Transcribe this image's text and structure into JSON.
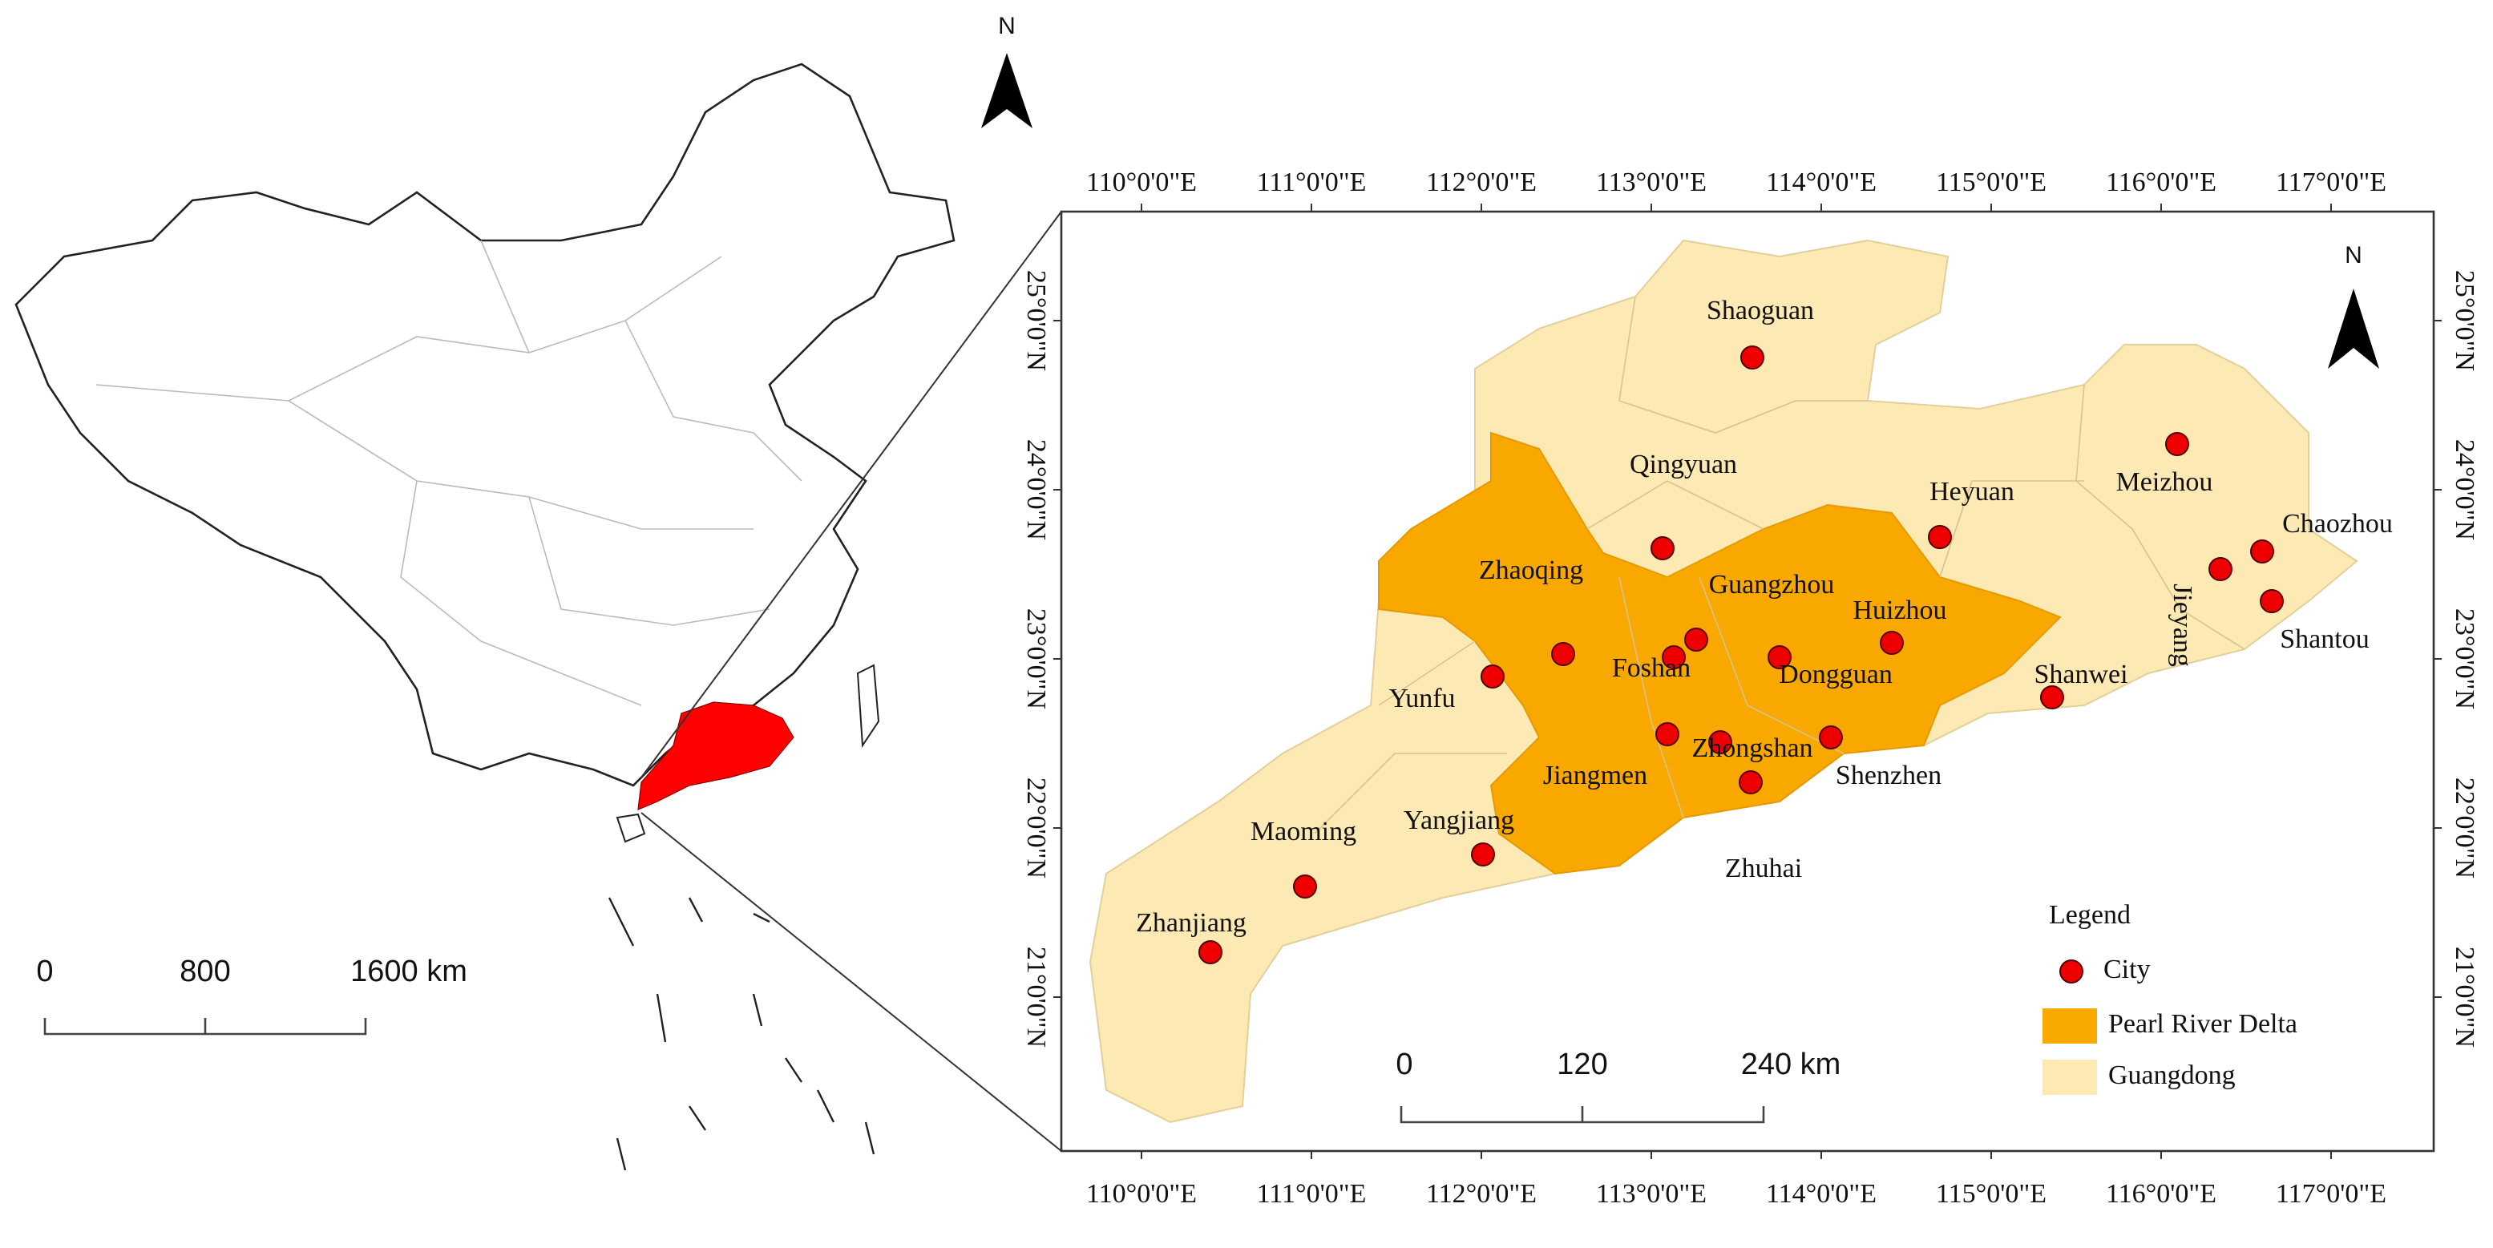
{
  "china_inset": {
    "north": "N",
    "scale_labels": [
      "0",
      "800",
      "1600 km"
    ]
  },
  "main_map": {
    "north": "N",
    "lon_labels": [
      "110°0'0\"E",
      "111°0'0\"E",
      "112°0'0\"E",
      "113°0'0\"E",
      "114°0'0\"E",
      "115°0'0\"E",
      "116°0'0\"E",
      "117°0'0\"E"
    ],
    "lat_labels": [
      "25°0'0\"N",
      "24°0'0\"N",
      "23°0'0\"N",
      "22°0'0\"N",
      "21°0'0\"N"
    ],
    "cities": [
      "Shaoguan",
      "Qingyuan",
      "Heyuan",
      "Meizhou",
      "Chaozhou",
      "Jieyang",
      "Shantou",
      "Zhaoqing",
      "Guangzhou",
      "Huizhou",
      "Foshan",
      "Dongguan",
      "Yunfu",
      "Shanwei",
      "Jiangmen",
      "Zhongshan",
      "Shenzhen",
      "Zhuhai",
      "Yangjiang",
      "Maoming",
      "Zhanjiang"
    ],
    "scale_labels": [
      "0",
      "120",
      "240 km"
    ],
    "legend": {
      "title": "Legend",
      "items": [
        "City",
        "Pearl River Delta",
        "Guangdong"
      ]
    }
  }
}
